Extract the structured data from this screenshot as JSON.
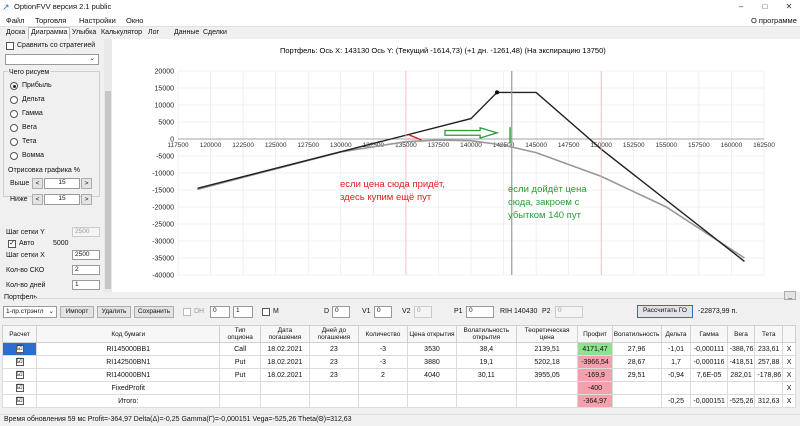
{
  "window": {
    "title": "OptionFVV версия 2.1 public"
  },
  "menu": {
    "items": [
      "Файл",
      "Торговля",
      "Настройки",
      "Окно"
    ],
    "about": "О программе"
  },
  "tabs": [
    "Доска",
    "Диаграмма",
    "Улыбка",
    "Калькулятор",
    "Лог",
    "Данные",
    "Сделки"
  ],
  "left_panel": {
    "compare_label": "Сравнить со стратегией",
    "what_draw_title": "Чего рисуем",
    "radio": [
      "Прибыль",
      "Дельта",
      "Гамма",
      "Вега",
      "Тета",
      "Вомма"
    ],
    "selected_radio": "Прибыль",
    "redraw_title": "Отрисовка графика %",
    "above_label": "Выше",
    "above_value": "15",
    "below_label": "Ниже",
    "below_value": "15",
    "grid_y_label": "Шаг сетки Y",
    "grid_y_value": "2500",
    "auto_label": "Авто",
    "auto_value": "5000",
    "grid_x_label": "Шаг сетки X",
    "grid_x_value": "2500",
    "sko_label": "Кол-во СКО",
    "sko_value": "2",
    "days_label": "Кол-во дней",
    "days_value": "1"
  },
  "chart_header": "Портфель:  Ось X:  143130 Ось Y:   (Текущий -1614,73)  (+1 дн. -1261,48)   (На экспирацию 13750)",
  "annotations": {
    "red_note_line1": "если цена сюда придёт,",
    "red_note_line2": "здесь купим ещё пут",
    "green_note_line1": "если дойдёт цена",
    "green_note_line2": "сюда, закроем с",
    "green_note_line3": "убытком 140 пут"
  },
  "chart_data": {
    "type": "line",
    "x_ticks": [
      117500,
      120000,
      122500,
      125000,
      127500,
      130000,
      132500,
      135000,
      137500,
      140000,
      142500,
      145000,
      147500,
      150000,
      152500,
      155000,
      157500,
      160000,
      162500
    ],
    "y_ticks": [
      20000,
      15000,
      10000,
      5000,
      0,
      -5000,
      -10000,
      -15000,
      -20000,
      -25000,
      -30000,
      -35000,
      -40000
    ],
    "xlim": [
      117500,
      162500
    ],
    "ylim": [
      -40000,
      20000
    ],
    "grid": true,
    "series": [
      {
        "color": "#222222",
        "x": [
          119000,
          140000,
          142000,
          145000,
          150000,
          161000
        ],
        "y": [
          -14500,
          6000,
          13700,
          13700,
          -3000,
          -36000
        ]
      },
      {
        "color": "#999999",
        "x": [
          119000,
          125000,
          130000,
          135000,
          137500,
          140000,
          142500,
          145000,
          150000,
          155000,
          161000
        ],
        "y": [
          -14800,
          -8800,
          -3800,
          -800,
          -300,
          -500,
          -1800,
          -4000,
          -11000,
          -20000,
          -35000
        ]
      }
    ]
  },
  "toolbar": {
    "strategy_select": "1-пр.стрэнгл",
    "import_label": "Импорт",
    "delete_label": "Удалить",
    "save_label": "Сохранить",
    "dh_label": "DH",
    "dh_val1": "0",
    "dh_val2": "1",
    "m_label": "M",
    "d_label": "D",
    "d_value": "0",
    "v1_label": "V1",
    "v1_value": "0",
    "v2_label": "V2",
    "v2_value": "0",
    "p1_label": "P1",
    "p1_value": "0",
    "ri_label": "RIH 140430",
    "p2_label": "P2",
    "p2_value": "0",
    "calc_label": "Рассчитать ГО",
    "go_value": "-22873,99 п."
  },
  "portfolio_label": "Портфель",
  "table": {
    "headers": [
      "Расчет",
      "Код бумаги",
      "Тип опциона",
      "Дата погашения",
      "Дней до погашения",
      "Количество",
      "Цена открытия",
      "Волатильность открытия",
      "Теоретическая цена",
      "Профит",
      "Волатильность",
      "Дельта",
      "Гамма",
      "Вега",
      "Тета",
      ""
    ],
    "rows": [
      {
        "check": "☑",
        "code": "RI145000BB1",
        "type": "Call",
        "date": "18.02.2021",
        "days": "23",
        "qty": "-3",
        "price": "3530",
        "vol_open": "38,4",
        "theo": "2139,51",
        "profit": "4171,47",
        "vol": "27,96",
        "delta": "-1,01",
        "gamma": "-0,000111",
        "vega": "-388,76",
        "theta": "233,61",
        "x": "X"
      },
      {
        "check": "☑",
        "code": "RI142500BN1",
        "type": "Put",
        "date": "18.02.2021",
        "days": "23",
        "qty": "-3",
        "price": "3880",
        "vol_open": "19,1",
        "theo": "5202,18",
        "profit": "-3966,54",
        "vol": "28,67",
        "delta": "1,7",
        "gamma": "-0,000116",
        "vega": "-418,51",
        "theta": "257,88",
        "x": "X"
      },
      {
        "check": "☑",
        "code": "RI140000BN1",
        "type": "Put",
        "date": "18.02.2021",
        "days": "23",
        "qty": "2",
        "price": "4040",
        "vol_open": "30,11",
        "theo": "3955,05",
        "profit": "-169,9",
        "vol": "29,51",
        "delta": "-0,94",
        "gamma": "7,6E-05",
        "vega": "282,01",
        "theta": "-178,86",
        "x": "X"
      },
      {
        "check": "☑",
        "code": "FixedProfit",
        "type": "",
        "date": "",
        "days": "",
        "qty": "",
        "price": "",
        "vol_open": "",
        "theo": "",
        "profit": "-400",
        "vol": "",
        "delta": "",
        "gamma": "",
        "vega": "",
        "theta": "",
        "x": "X"
      },
      {
        "check": "☑",
        "code": "Итого:",
        "type": "",
        "date": "",
        "days": "",
        "qty": "",
        "price": "",
        "vol_open": "",
        "theo": "",
        "profit": "-364,97",
        "vol": "",
        "delta": "-0,25",
        "gamma": "-0,000151",
        "vega": "-525,26",
        "theta": "312,63",
        "x": "X"
      }
    ]
  },
  "status": "Время обновления 59 мс  Profit=-364,97 Delta(Δ)=-0,25 Gamma(Γ)=-0,000151 Vega=-525,26 Theta(Θ)=312,63"
}
